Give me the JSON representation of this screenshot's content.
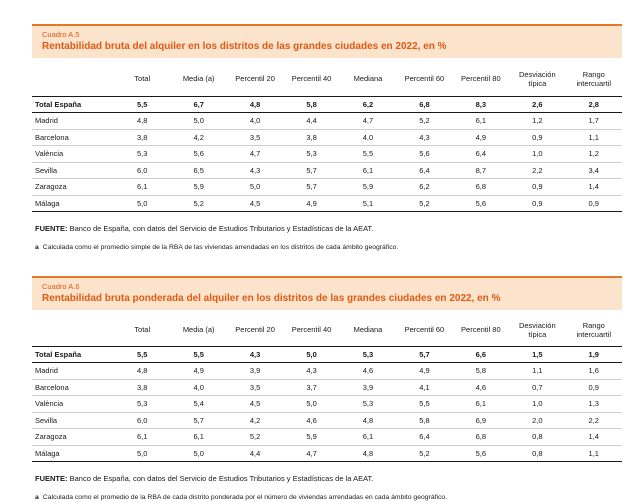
{
  "tables": [
    {
      "cuadro": "Cuadro A.5",
      "title": "Rentabilidad bruta del alquiler en los distritos de las grandes ciudades en 2022, en %",
      "columns": [
        "",
        "Total",
        "Media (a)",
        "Percentil 20",
        "Percentil 40",
        "Mediana",
        "Percentil 60",
        "Percentil 80",
        "Desviación típica",
        "Rango intercuartil"
      ],
      "total_row": [
        "Total España",
        "5,5",
        "6,7",
        "4,8",
        "5,8",
        "6,2",
        "6,8",
        "8,3",
        "2,6",
        "2,8"
      ],
      "rows": [
        [
          "Madrid",
          "4,8",
          "5,0",
          "4,0",
          "4,4",
          "4,7",
          "5,2",
          "6,1",
          "1,2",
          "1,7"
        ],
        [
          "Barcelona",
          "3,8",
          "4,2",
          "3,5",
          "3,8",
          "4,0",
          "4,3",
          "4,9",
          "0,9",
          "1,1"
        ],
        [
          "València",
          "5,3",
          "5,6",
          "4,7",
          "5,3",
          "5,5",
          "5,6",
          "6,4",
          "1,0",
          "1,2"
        ],
        [
          "Sevilla",
          "6,0",
          "6,5",
          "4,3",
          "5,7",
          "6,1",
          "6,4",
          "8,7",
          "2,2",
          "3,4"
        ],
        [
          "Zaragoza",
          "6,1",
          "5,9",
          "5,0",
          "5,7",
          "5,9",
          "6,2",
          "6,8",
          "0,9",
          "1,4"
        ],
        [
          "Málaga",
          "5,0",
          "5,2",
          "4,5",
          "4,9",
          "5,1",
          "5,2",
          "5,6",
          "0,9",
          "0,9"
        ]
      ],
      "fuente_label": "FUENTE:",
      "fuente_text": "Banco de España, con datos del Servicio de Estudios Tributarios y Estadísticas de la AEAT.",
      "footnote_mark": "a",
      "footnote_text": "Calculada como el promedio simple de la RBA de las viviendas arrendadas en los distritos de cada ámbito geográfico."
    },
    {
      "cuadro": "Cuadro A.6",
      "title": "Rentabilidad bruta ponderada del alquiler en los distritos de las grandes ciudades en 2022, en %",
      "columns": [
        "",
        "Total",
        "Media (a)",
        "Percentil 20",
        "Percentil 40",
        "Mediana",
        "Percentil 60",
        "Percentil 80",
        "Desviación típica",
        "Rango intercuartil"
      ],
      "total_row": [
        "Total España",
        "5,5",
        "5,5",
        "4,3",
        "5,0",
        "5,3",
        "5,7",
        "6,6",
        "1,5",
        "1,9"
      ],
      "rows": [
        [
          "Madrid",
          "4,8",
          "4,9",
          "3,9",
          "4,3",
          "4,6",
          "4,9",
          "5,8",
          "1,1",
          "1,6"
        ],
        [
          "Barcelona",
          "3,8",
          "4,0",
          "3,5",
          "3,7",
          "3,9",
          "4,1",
          "4,6",
          "0,7",
          "0,9"
        ],
        [
          "València",
          "5,3",
          "5,4",
          "4,5",
          "5,0",
          "5,3",
          "5,5",
          "6,1",
          "1,0",
          "1,3"
        ],
        [
          "Sevilla",
          "6,0",
          "5,7",
          "4,2",
          "4,6",
          "4,8",
          "5,8",
          "6,9",
          "2,0",
          "2,2"
        ],
        [
          "Zaragoza",
          "6,1",
          "6,1",
          "5,2",
          "5,9",
          "6,1",
          "6,4",
          "6,8",
          "0,8",
          "1,4"
        ],
        [
          "Málaga",
          "5,0",
          "5,0",
          "4,4",
          "4,7",
          "4,8",
          "5,2",
          "5,6",
          "0,8",
          "1,1"
        ]
      ],
      "fuente_label": "FUENTE:",
      "fuente_text": "Banco de España, con datos del Servicio de Estudios Tributarios y Estadísticas de la AEAT.",
      "footnote_mark": "a",
      "footnote_text": "Calculada como el promedio de la RBA de cada distrito ponderada por el número de viviendas arrendadas en cada ámbito geográfico."
    }
  ]
}
